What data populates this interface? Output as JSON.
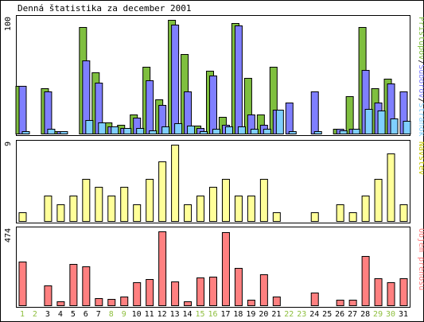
{
  "colors": {
    "background": "#ffffff",
    "panel_fill": "#ffffff",
    "border": "#000000",
    "hits": "#7fbf3f",
    "files": "#7f7fff",
    "pages": "#7fcfff",
    "visits": "#ffff99",
    "kbytes": "#ff8080",
    "weekday_label": "#000000",
    "weekend_label": "#8fbf3f"
  },
  "chart_data": {
    "type": "bar",
    "title": "Denná štatistika za december 2001",
    "categories": [
      "1",
      "2",
      "3",
      "4",
      "5",
      "6",
      "7",
      "8",
      "9",
      "10",
      "11",
      "12",
      "13",
      "14",
      "15",
      "16",
      "17",
      "18",
      "19",
      "20",
      "21",
      "22",
      "23",
      "24",
      "25",
      "26",
      "27",
      "28",
      "29",
      "30",
      "31"
    ],
    "weekend_days": [
      "1",
      "2",
      "8",
      "9",
      "15",
      "16",
      "22",
      "23",
      "29",
      "30"
    ],
    "panels": [
      {
        "name": "hits-files-pages",
        "max_label": "100",
        "ylim": [
          0,
          100
        ],
        "legend": [
          {
            "text": "Prístupov",
            "color": "#7fbf3f"
          },
          {
            "text": "/",
            "color": "#000000"
          },
          {
            "text": "Súborov",
            "color": "#7f7fff"
          },
          {
            "text": "/",
            "color": "#000000"
          },
          {
            "text": "Stránok",
            "color": "#7fcfff"
          }
        ],
        "series": [
          {
            "name": "Prístupov",
            "color": "#7fbf3f",
            "values": [
              42,
              0,
              40,
              2,
              0,
              94,
              54,
              10,
              8,
              17,
              59,
              30,
              100,
              70,
              7,
              55,
              15,
              97,
              49,
              17,
              59,
              0,
              0,
              0,
              0,
              4,
              33,
              94,
              40,
              48,
              0
            ]
          },
          {
            "name": "Súborov",
            "color": "#7f7fff",
            "values": [
              42,
              0,
              37,
              2,
              0,
              64,
              45,
              6,
              5,
              14,
              47,
              25,
              96,
              37,
              5,
              51,
              8,
              95,
              17,
              8,
              21,
              27,
              0,
              37,
              0,
              4,
              4,
              56,
              27,
              44,
              37
            ]
          },
          {
            "name": "Stránok",
            "color": "#7fcfff",
            "values": [
              2,
              0,
              4,
              2,
              0,
              12,
              10,
              6,
              5,
              5,
              3,
              6,
              9,
              7,
              2,
              4,
              6,
              6,
              4,
              4,
              21,
              2,
              0,
              2,
              0,
              3,
              4,
              22,
              20,
              13,
              11
            ]
          }
        ]
      },
      {
        "name": "visits",
        "max_label": "9",
        "ylim": [
          0,
          9
        ],
        "legend": [
          {
            "text": "Návštev",
            "color": "#c8c800"
          }
        ],
        "series": [
          {
            "name": "Návštev",
            "color": "#ffff99",
            "values": [
              1,
              0,
              3,
              2,
              3,
              5,
              4,
              3,
              4,
              2,
              5,
              7,
              9,
              2,
              3,
              4,
              5,
              3,
              3,
              5,
              1,
              0,
              0,
              1,
              0,
              2,
              1,
              3,
              5,
              8,
              2
            ]
          }
        ]
      },
      {
        "name": "kbytes",
        "max_label": "474",
        "ylim": [
          0,
          474
        ],
        "legend": [
          {
            "text": "Objem prenosu",
            "color": "#ff8080"
          }
        ],
        "series": [
          {
            "name": "Objem prenosu",
            "color": "#ff8080",
            "values": [
              282,
              0,
              129,
              27,
              265,
              248,
              47,
              40,
              57,
              147,
              170,
              474,
              155,
              25,
              180,
              181,
              468,
              238,
              38,
              199,
              54,
              0,
              0,
              84,
              0,
              34,
              34,
              316,
              173,
              148,
              172
            ]
          }
        ]
      }
    ]
  }
}
